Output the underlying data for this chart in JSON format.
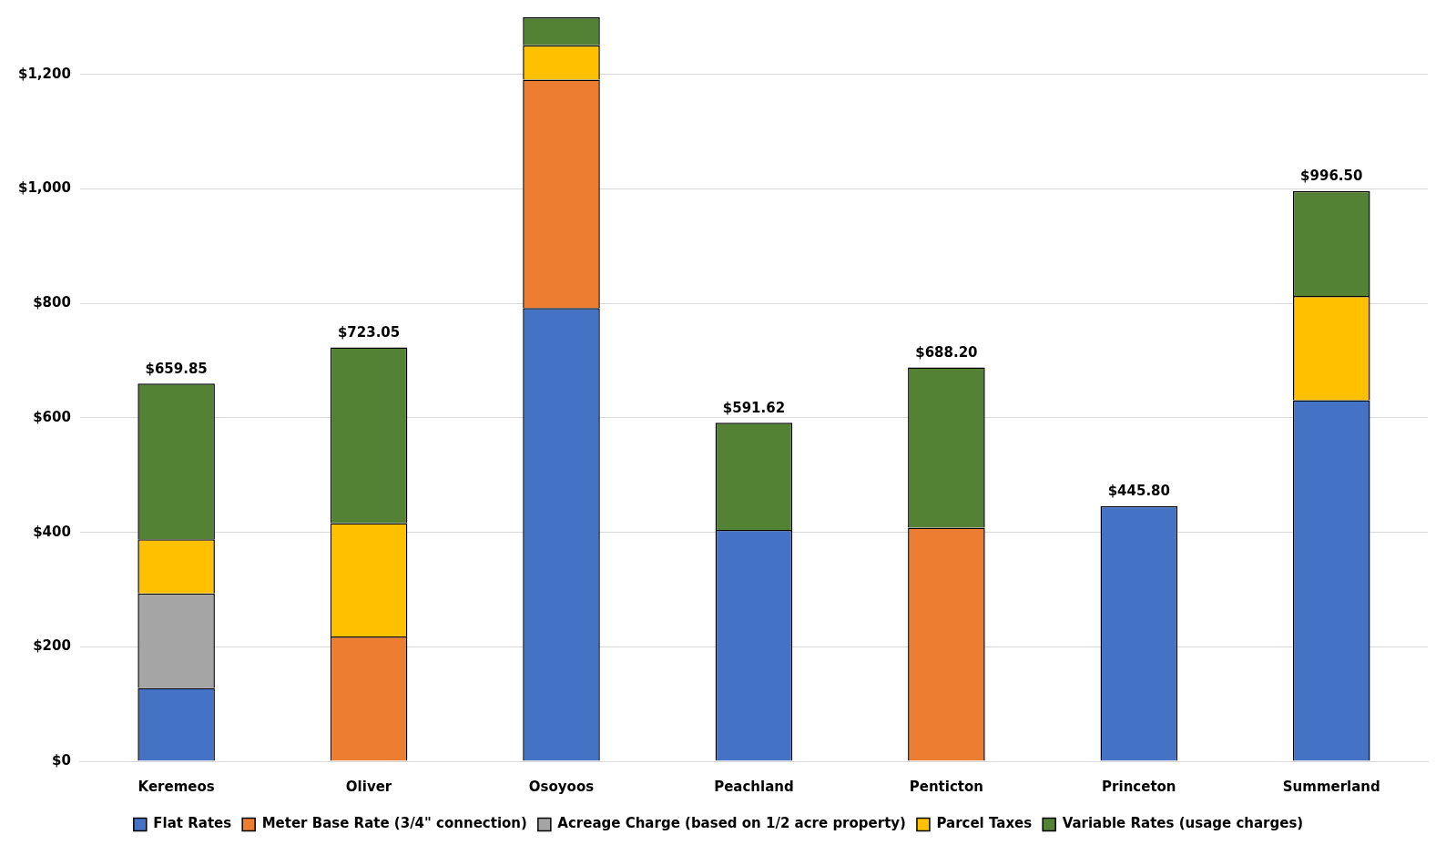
{
  "chart_data": {
    "type": "bar",
    "stacked": true,
    "categories": [
      "Keremeos",
      "Oliver",
      "Osoyoos",
      "Peachland",
      "Penticton",
      "Princeton",
      "Summerland"
    ],
    "series": [
      {
        "name": "Flat Rates",
        "color": "#4472c4",
        "values": [
          128,
          null,
          792,
          404,
          null,
          445.8,
          631
        ]
      },
      {
        "name": "Meter Base Rate (3/4\" connection)",
        "color": "#ed7d31",
        "values": [
          null,
          218,
          399,
          null,
          408,
          null,
          null
        ]
      },
      {
        "name": "Acreage Charge (based on 1/2 acre property)",
        "color": "#a5a5a5",
        "values": [
          165,
          null,
          null,
          null,
          null,
          null,
          null
        ]
      },
      {
        "name": "Parcel Taxes",
        "color": "#ffc000",
        "values": [
          95,
          198,
          60,
          null,
          null,
          null,
          182
        ]
      },
      {
        "name": "Variable Rates (usage charges)",
        "color": "#548235",
        "values": [
          271.85,
          307.05,
          49,
          187.62,
          280.2,
          null,
          183.5
        ]
      }
    ],
    "totals": [
      "$659.85",
      "$723.05",
      null,
      "$591.62",
      "$688.20",
      "$445.80",
      "$996.50"
    ],
    "ylim": [
      0,
      1300
    ],
    "yticks": [
      {
        "value": 0,
        "label": "$0"
      },
      {
        "value": 200,
        "label": "$200"
      },
      {
        "value": 400,
        "label": "$400"
      },
      {
        "value": 600,
        "label": "$600"
      },
      {
        "value": 800,
        "label": "$800"
      },
      {
        "value": 1000,
        "label": "$1,000"
      },
      {
        "value": 1200,
        "label": "$1,200"
      }
    ],
    "grid": "y",
    "legend": "bottom"
  }
}
